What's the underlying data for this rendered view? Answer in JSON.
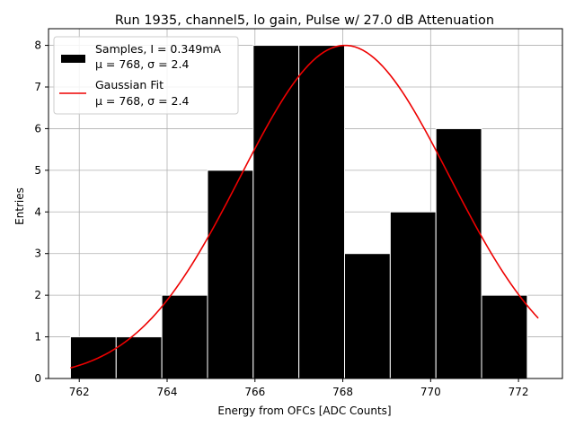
{
  "chart_data": {
    "type": "bar",
    "title": "Run 1935, channel5, lo gain, Pulse w/ 27.0 dB Attenuation",
    "xlabel": "Energy from OFCs [ADC Counts]",
    "ylabel": "Entries",
    "xlim": [
      761.3,
      773.0
    ],
    "ylim": [
      0,
      8.4
    ],
    "xticks": [
      762,
      764,
      766,
      768,
      770,
      772
    ],
    "yticks": [
      0,
      1,
      2,
      3,
      4,
      5,
      6,
      7,
      8
    ],
    "grid": true,
    "legend_position": "top-left",
    "bin_edges": [
      761.8,
      762.84,
      763.88,
      764.92,
      765.96,
      767.0,
      768.04,
      769.08,
      770.12,
      771.16,
      772.2
    ],
    "series": [
      {
        "name": "Samples, I = 0.349mA",
        "legend_lines": [
          "Samples, I = 0.349mA",
          "μ = 768, σ = 2.4"
        ],
        "kind": "histogram",
        "color": "#000000",
        "edgecolor": "#ffffff",
        "values": [
          1,
          1,
          2,
          5,
          8,
          8,
          3,
          4,
          6,
          2
        ]
      },
      {
        "name": "Gaussian Fit",
        "legend_lines": [
          "Gaussian Fit",
          "μ = 768, σ = 2.4"
        ],
        "kind": "line",
        "color": "#ee0000",
        "amplitude": 8.0,
        "mu": 768.05,
        "sigma": 2.38,
        "x_range": [
          761.8,
          772.45
        ]
      }
    ]
  }
}
